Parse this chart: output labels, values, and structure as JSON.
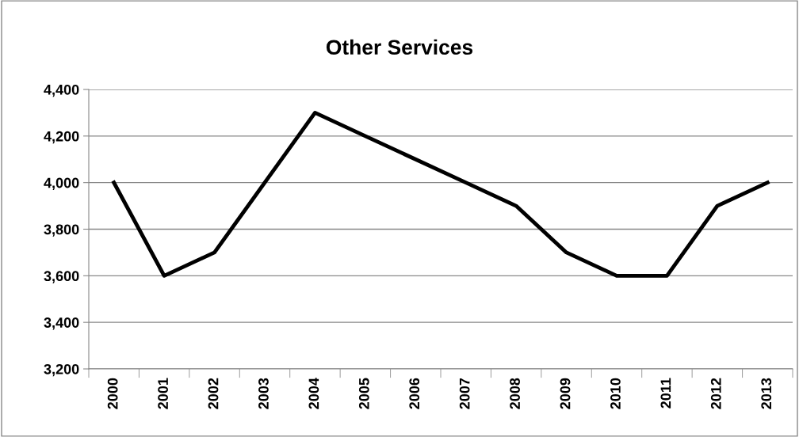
{
  "chart_data": {
    "type": "line",
    "title": "Other Services",
    "categories": [
      "2000",
      "2001",
      "2002",
      "2003",
      "2004",
      "2005",
      "2006",
      "2007",
      "2008",
      "2009",
      "2010",
      "2011",
      "2012",
      "2013"
    ],
    "series": [
      {
        "color": "#000000",
        "values": [
          4000,
          3600,
          3700,
          4000,
          4300,
          4200,
          4100,
          4000,
          3900,
          3700,
          3600,
          3600,
          3900,
          4000
        ]
      }
    ],
    "ylim": [
      3200,
      4400
    ],
    "yticks": [
      {
        "value": 3200,
        "label": "3,200"
      },
      {
        "value": 3400,
        "label": "3,400"
      },
      {
        "value": 3600,
        "label": "3,600"
      },
      {
        "value": 3800,
        "label": "3,800"
      },
      {
        "value": 4000,
        "label": "4,000"
      },
      {
        "value": 4200,
        "label": "4,200"
      },
      {
        "value": 4400,
        "label": "4,400"
      }
    ],
    "grid": "y",
    "legend": false,
    "marker": "none",
    "line_style": "solid"
  }
}
